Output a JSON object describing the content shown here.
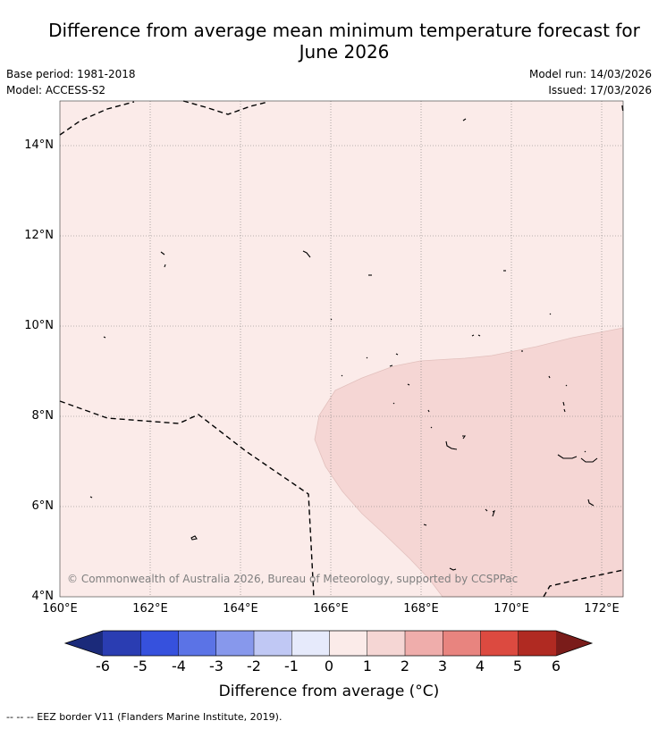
{
  "title": {
    "line1": "Difference from average mean minimum temperature forecast for",
    "line2": "June 2026"
  },
  "meta": {
    "base_period": "Base period: 1981-2018",
    "model": "Model: ACCESS-S2",
    "model_run": "Model run: 14/03/2026",
    "issued": "Issued: 17/03/2026"
  },
  "map": {
    "background_color": "#fbebe9",
    "warm_region_color": "#f5d6d4",
    "copyright": "© Commonwealth of Australia 2026, Bureau of Meteorology, supported by CCSPPac",
    "lat_labels": [
      "14°N",
      "12°N",
      "10°N",
      "8°N",
      "6°N",
      "4°N"
    ],
    "lon_labels": [
      "160°E",
      "162°E",
      "164°E",
      "166°E",
      "168°E",
      "170°E",
      "172°E"
    ]
  },
  "colorbar": {
    "ticks": [
      "-6",
      "-5",
      "-4",
      "-3",
      "-2",
      "-1",
      "0",
      "1",
      "2",
      "3",
      "4",
      "5",
      "6"
    ],
    "colors": [
      "#1b2a7a",
      "#2a3db2",
      "#3651dd",
      "#5b73e6",
      "#8798ec",
      "#c0c8f4",
      "#e6eafb",
      "#fbebe9",
      "#f5d6d4",
      "#efadab",
      "#e8847f",
      "#dc4a40",
      "#b02a22",
      "#7a1c1a"
    ],
    "label": "Difference from average (°C)"
  },
  "legend": {
    "eez": "--  --  -- EEZ border V11 (Flanders Marine Institute, 2019)."
  }
}
